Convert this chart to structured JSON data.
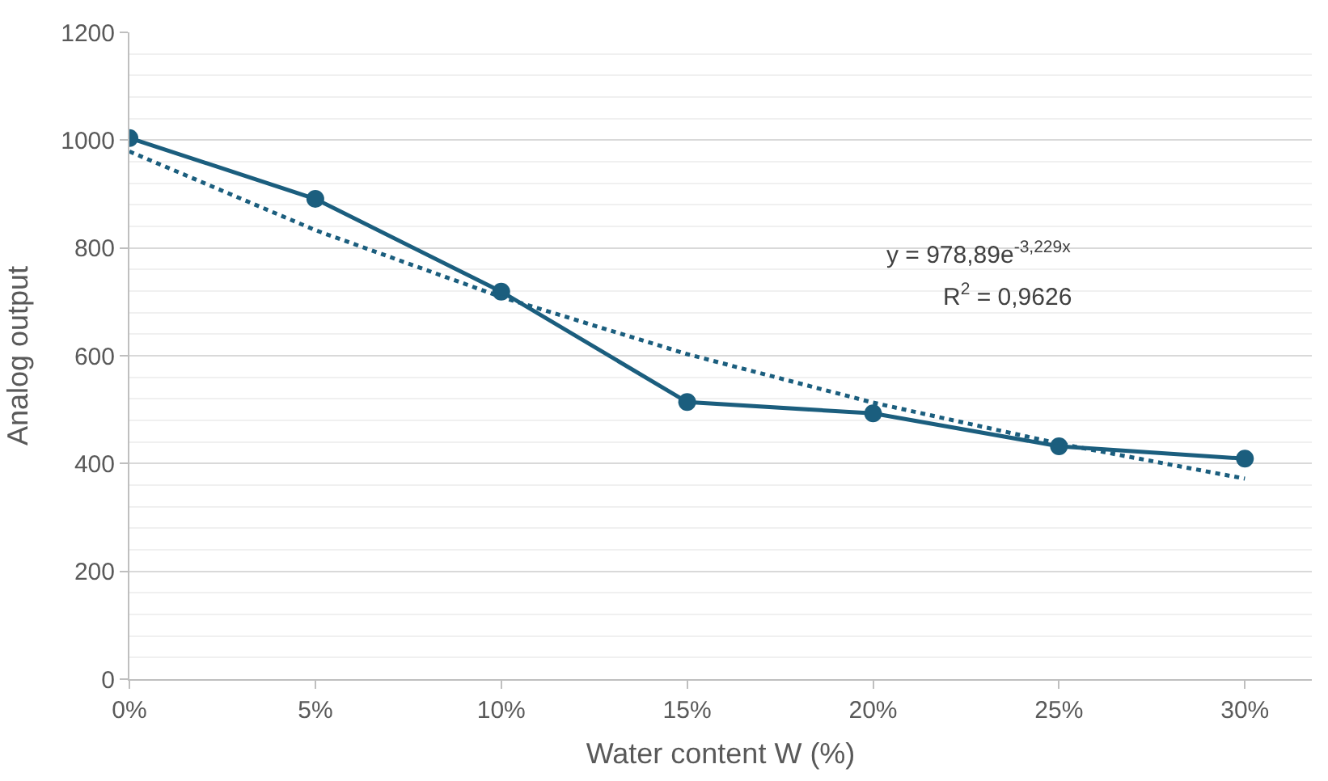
{
  "chart_data": {
    "type": "line",
    "xlabel": "Water content W (%)",
    "ylabel": "Analog output",
    "x": [
      0,
      5,
      10,
      15,
      20,
      25,
      30
    ],
    "series": [
      {
        "color": "#1b5e7e",
        "values": [
          1004,
          891,
          719,
          514,
          493,
          432,
          409
        ],
        "marker": "circle",
        "line_style": "solid"
      },
      {
        "color": "#1b5e7e",
        "values": [
          979,
          833,
          709,
          603,
          513,
          437,
          372
        ],
        "marker": "none",
        "line_style": "dotted"
      }
    ],
    "xlim": [
      0,
      31.8
    ],
    "xticks": [
      {
        "value": 0,
        "label": "0%"
      },
      {
        "value": 5,
        "label": "5%"
      },
      {
        "value": 10,
        "label": "10%"
      },
      {
        "value": 15,
        "label": "15%"
      },
      {
        "value": 20,
        "label": "20%"
      },
      {
        "value": 25,
        "label": "25%"
      },
      {
        "value": 30,
        "label": "30%"
      }
    ],
    "ylim": [
      0,
      1200
    ],
    "yticks": [
      0,
      200,
      400,
      600,
      800,
      1000,
      1200
    ],
    "grid": "y",
    "annotations": [
      "y = 978,89e$^{-3,229x}$",
      "R$^{2}$ = 0,9626"
    ]
  }
}
